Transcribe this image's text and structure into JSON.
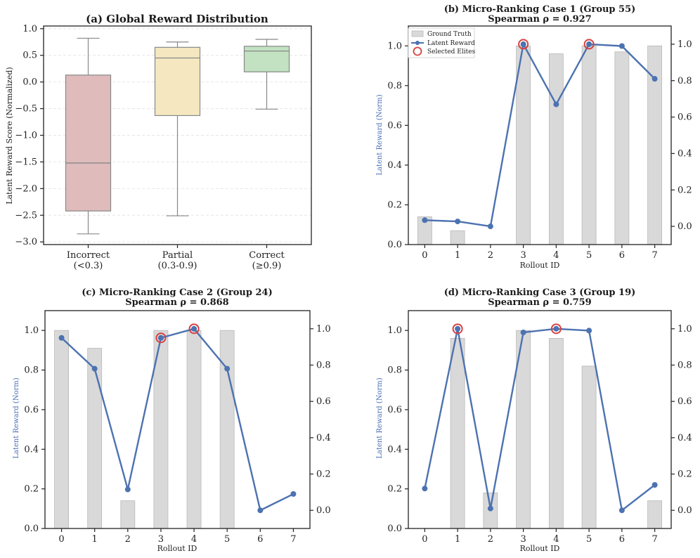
{
  "chart_data": [
    {
      "type": "boxplot",
      "title": "(a) Global Reward Distribution",
      "ylabel": "Latent Reward Score (Normalized)",
      "ylim": [
        -3.05,
        1.05
      ],
      "yticks": [
        "1.0",
        "0.5",
        "0.0",
        "−0.5",
        "−1.0",
        "−1.5",
        "−2.0",
        "−2.5",
        "−3.0"
      ],
      "grid": "horizontal dashed",
      "boxes": [
        {
          "label_line1": "Incorrect",
          "label_line2": "(<0.3)",
          "whisker_low": -2.85,
          "q1": -2.42,
          "median": -1.52,
          "q3": 0.13,
          "whisker_high": 0.82,
          "color": "#dfbbbb"
        },
        {
          "label_line1": "Partial",
          "label_line2": "(0.3-0.9)",
          "whisker_low": -2.51,
          "q1": -0.63,
          "median": 0.45,
          "q3": 0.65,
          "whisker_high": 0.75,
          "color": "#f5e8c0"
        },
        {
          "label_line1": "Correct",
          "label_line2": "(≥0.9)",
          "whisker_low": -0.51,
          "q1": 0.19,
          "median": 0.58,
          "q3": 0.67,
          "whisker_high": 0.8,
          "color": "#c2e2c1"
        }
      ]
    },
    {
      "type": "bar+line",
      "title": "(b) Micro-Ranking Case 1 (Group 55)",
      "subtitle": "Spearman ρ = 0.927",
      "xlabel": "Rollout ID",
      "ylabel": "Latent Reward (Norm)",
      "x": [
        "0",
        "1",
        "2",
        "3",
        "4",
        "5",
        "6",
        "7"
      ],
      "ground_truth": [
        0.14,
        0.07,
        0.0,
        1.0,
        0.96,
        1.0,
        0.97,
        1.0
      ],
      "latent_reward": [
        0.034,
        0.027,
        0.0,
        1.0,
        0.67,
        1.0,
        0.99,
        0.81
      ],
      "selected_elites": [
        3,
        5
      ],
      "left_ylim": [
        0,
        1.1
      ],
      "right_ylim": [
        -0.1,
        1.1
      ],
      "left_yticks": [
        "0.0",
        "0.2",
        "0.4",
        "0.6",
        "0.8",
        "1.0"
      ],
      "right_yticks": [
        "0.0",
        "0.2",
        "0.4",
        "0.6",
        "0.8",
        "1.0"
      ],
      "legend": [
        "Ground Truth",
        "Latent Reward",
        "Selected Elites"
      ],
      "legend_position": "top-left"
    },
    {
      "type": "bar+line",
      "title": "(c) Micro-Ranking Case 2 (Group 24)",
      "subtitle": "Spearman ρ = 0.868",
      "xlabel": "Rollout ID",
      "ylabel": "Latent Reward (Norm)",
      "x": [
        "0",
        "1",
        "2",
        "3",
        "4",
        "5",
        "6",
        "7"
      ],
      "ground_truth": [
        1.0,
        0.91,
        0.14,
        1.0,
        1.0,
        1.0,
        0.0,
        0.0
      ],
      "latent_reward": [
        0.95,
        0.78,
        0.115,
        0.95,
        1.0,
        0.78,
        0.0,
        0.09
      ],
      "selected_elites": [
        3,
        4
      ],
      "left_ylim": [
        0,
        1.1
      ],
      "right_ylim": [
        -0.1,
        1.1
      ],
      "left_yticks": [
        "0.0",
        "0.2",
        "0.4",
        "0.6",
        "0.8",
        "1.0"
      ],
      "right_yticks": [
        "0.0",
        "0.2",
        "0.4",
        "0.6",
        "0.8",
        "1.0"
      ]
    },
    {
      "type": "bar+line",
      "title": "(d) Micro-Ranking Case 3 (Group 19)",
      "subtitle": "Spearman ρ = 0.759",
      "xlabel": "Rollout ID",
      "ylabel": "Latent Reward (Norm)",
      "x": [
        "0",
        "1",
        "2",
        "3",
        "4",
        "5",
        "6",
        "7"
      ],
      "ground_truth": [
        0.0,
        0.96,
        0.18,
        1.0,
        0.96,
        0.82,
        0.0,
        0.14
      ],
      "latent_reward": [
        0.12,
        1.0,
        0.01,
        0.98,
        1.0,
        0.99,
        0.0,
        0.14
      ],
      "selected_elites": [
        1,
        4
      ],
      "left_ylim": [
        0,
        1.1
      ],
      "right_ylim": [
        -0.1,
        1.1
      ],
      "left_yticks": [
        "0.0",
        "0.2",
        "0.4",
        "0.6",
        "0.8",
        "1.0"
      ],
      "right_yticks": [
        "0.0",
        "0.2",
        "0.4",
        "0.6",
        "0.8",
        "1.0"
      ]
    }
  ],
  "colors": {
    "bar": "#d9d9d9",
    "bar_edge": "#b8b8b8",
    "line": "#4c72b0",
    "elite": "#d9403f",
    "axis": "#222222",
    "whisker": "#888888",
    "grid": "#e6e6e6"
  }
}
